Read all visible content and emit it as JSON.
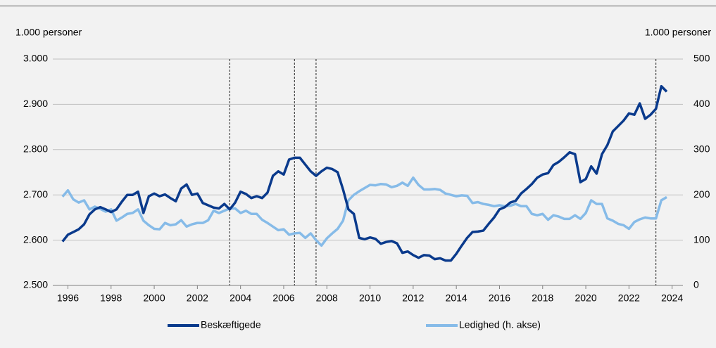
{
  "chart_data": {
    "type": "line",
    "ylabel": "1.000 personer",
    "y2label": "1.000 personer",
    "x": [
      1995.75,
      1996,
      1996.25,
      1996.5,
      1996.75,
      1997,
      1997.25,
      1997.5,
      1997.75,
      1998,
      1998.25,
      1998.5,
      1998.75,
      1999,
      1999.25,
      1999.5,
      1999.75,
      2000,
      2000.25,
      2000.5,
      2000.75,
      2001,
      2001.25,
      2001.5,
      2001.75,
      2002,
      2002.25,
      2002.5,
      2002.75,
      2003,
      2003.25,
      2003.5,
      2003.75,
      2004,
      2004.25,
      2004.5,
      2004.75,
      2005,
      2005.25,
      2005.5,
      2005.75,
      2006,
      2006.25,
      2006.5,
      2006.75,
      2007,
      2007.25,
      2007.5,
      2007.75,
      2008,
      2008.25,
      2008.5,
      2008.75,
      2009,
      2009.25,
      2009.5,
      2009.75,
      2010,
      2010.25,
      2010.5,
      2010.75,
      2011,
      2011.25,
      2011.5,
      2011.75,
      2012,
      2012.25,
      2012.5,
      2012.75,
      2013,
      2013.25,
      2013.5,
      2013.75,
      2014,
      2014.25,
      2014.5,
      2014.75,
      2015,
      2015.25,
      2015.5,
      2015.75,
      2016,
      2016.25,
      2016.5,
      2016.75,
      2017,
      2017.25,
      2017.5,
      2017.75,
      2018,
      2018.25,
      2018.5,
      2018.75,
      2019,
      2019.25,
      2019.5,
      2019.75,
      2020,
      2020.25,
      2020.5,
      2020.75,
      2021,
      2021.25,
      2021.5,
      2021.75,
      2022,
      2022.25,
      2022.5,
      2022.75,
      2023,
      2023.25,
      2023.5,
      2023.75
    ],
    "series": [
      {
        "name": "Beskæftigede",
        "color": "#0a3a8c",
        "values": [
          2597,
          2612,
          2618,
          2624,
          2635,
          2657,
          2668,
          2673,
          2668,
          2662,
          2668,
          2685,
          2700,
          2700,
          2707,
          2660,
          2697,
          2703,
          2697,
          2701,
          2693,
          2686,
          2714,
          2723,
          2700,
          2703,
          2682,
          2677,
          2672,
          2670,
          2680,
          2668,
          2683,
          2707,
          2702,
          2693,
          2697,
          2693,
          2705,
          2742,
          2752,
          2745,
          2778,
          2782,
          2782,
          2767,
          2752,
          2742,
          2752,
          2760,
          2757,
          2750,
          2712,
          2668,
          2658,
          2605,
          2602,
          2606,
          2603,
          2592,
          2596,
          2598,
          2593,
          2572,
          2575,
          2567,
          2561,
          2567,
          2566,
          2558,
          2560,
          2555,
          2555,
          2570,
          2588,
          2605,
          2618,
          2619,
          2621,
          2636,
          2650,
          2668,
          2673,
          2683,
          2687,
          2703,
          2713,
          2724,
          2738,
          2745,
          2748,
          2766,
          2773,
          2783,
          2794,
          2790,
          2728,
          2735,
          2763,
          2747,
          2790,
          2810,
          2840,
          2852,
          2864,
          2880,
          2877,
          2902,
          2868,
          2877,
          2890,
          2940,
          2928
        ]
      },
      {
        "name": "Ledighed (h. akse)",
        "color": "#86bbe8",
        "axis": "y2",
        "values": [
          196,
          210,
          190,
          183,
          188,
          168,
          174,
          169,
          163,
          168,
          143,
          150,
          158,
          160,
          168,
          143,
          133,
          125,
          124,
          138,
          133,
          135,
          144,
          130,
          135,
          138,
          138,
          144,
          165,
          160,
          165,
          170,
          170,
          160,
          165,
          158,
          158,
          145,
          138,
          130,
          122,
          124,
          112,
          115,
          116,
          105,
          115,
          100,
          88,
          104,
          115,
          125,
          143,
          188,
          200,
          208,
          215,
          222,
          221,
          224,
          223,
          217,
          220,
          227,
          220,
          238,
          222,
          212,
          212,
          213,
          211,
          203,
          200,
          197,
          199,
          198,
          182,
          184,
          180,
          178,
          175,
          177,
          175,
          176,
          180,
          175,
          175,
          158,
          155,
          158,
          145,
          155,
          152,
          147,
          147,
          155,
          147,
          160,
          188,
          180,
          180,
          148,
          143,
          136,
          133,
          125,
          140,
          146,
          150,
          148,
          148,
          188,
          195
        ]
      }
    ],
    "xlim": [
      1995.3,
      2024.5
    ],
    "xticks": [
      1996,
      1998,
      2000,
      2002,
      2004,
      2006,
      2008,
      2010,
      2012,
      2014,
      2016,
      2018,
      2020,
      2022,
      2024
    ],
    "ylim": [
      2500,
      3000
    ],
    "yticks": [
      {
        "value": 2500,
        "label": "2.500"
      },
      {
        "value": 2600,
        "label": "2.600"
      },
      {
        "value": 2700,
        "label": "2.700"
      },
      {
        "value": 2800,
        "label": "2.800"
      },
      {
        "value": 2900,
        "label": "2.900"
      },
      {
        "value": 3000,
        "label": "3.000"
      }
    ],
    "y2lim": [
      0,
      500
    ],
    "y2ticks": [
      0,
      100,
      200,
      300,
      400,
      500
    ],
    "vlines": [
      2003.5,
      2006.5,
      2007.5,
      2023.25
    ],
    "grid": true
  }
}
